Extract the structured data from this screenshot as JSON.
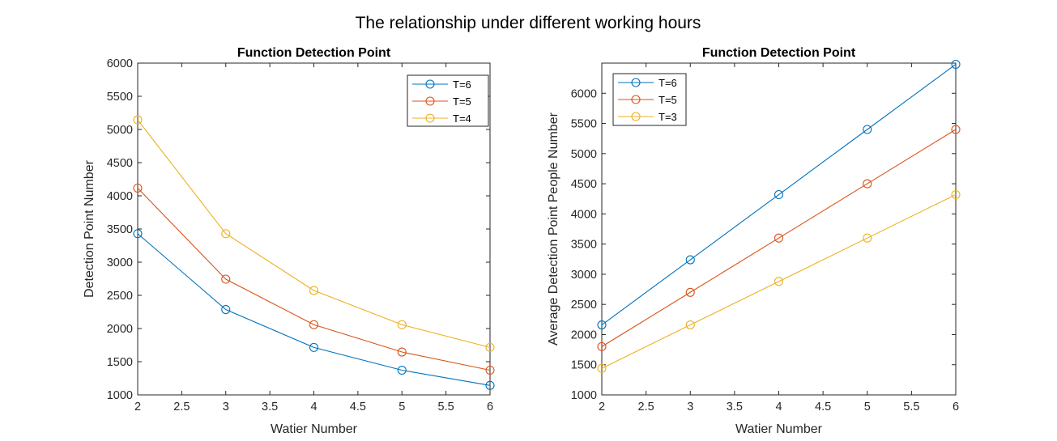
{
  "figure": {
    "suptitle": "The relationship under different working hours"
  },
  "chart_data": [
    {
      "type": "line",
      "title": "Function Detection Point",
      "xlabel": "Watier Number",
      "ylabel": "Detection Point Number",
      "x": [
        2,
        3,
        4,
        5,
        6
      ],
      "xlim": [
        2,
        6
      ],
      "ylim": [
        1000,
        6000
      ],
      "xticks": [
        2,
        2.5,
        3,
        3.5,
        4,
        4.5,
        5,
        5.5,
        6
      ],
      "yticks": [
        1000,
        1500,
        2000,
        2500,
        3000,
        3500,
        4000,
        4500,
        5000,
        5500,
        6000
      ],
      "xtick_labels": [
        "2",
        "2.5",
        "3",
        "3.5",
        "4",
        "4.5",
        "5",
        "5.5",
        "6"
      ],
      "ytick_labels": [
        "1000",
        "1500",
        "2000",
        "2500",
        "3000",
        "3500",
        "4000",
        "4500",
        "5000",
        "5500",
        "6000"
      ],
      "marker": "circle",
      "legend_position": "top-right",
      "grid": false,
      "series": [
        {
          "name": "T=6",
          "color": "#0072BD",
          "values": [
            3430,
            2286,
            1715,
            1372,
            1143
          ]
        },
        {
          "name": "T=5",
          "color": "#D95319",
          "values": [
            4116,
            2744,
            2058,
            1646,
            1372
          ]
        },
        {
          "name": "T=4",
          "color": "#EDB120",
          "values": [
            5145,
            3430,
            2573,
            2058,
            1715
          ]
        }
      ]
    },
    {
      "type": "line",
      "title": "Function Detection Point",
      "xlabel": "Watier Number",
      "ylabel": "Average Detection Point People Number",
      "x": [
        2,
        3,
        4,
        5,
        6
      ],
      "xlim": [
        2,
        6
      ],
      "ylim": [
        1000,
        6500
      ],
      "xticks": [
        2,
        2.5,
        3,
        3.5,
        4,
        4.5,
        5,
        5.5,
        6
      ],
      "yticks": [
        1000,
        1500,
        2000,
        2500,
        3000,
        3500,
        4000,
        4500,
        5000,
        5500,
        6000
      ],
      "xtick_labels": [
        "2",
        "2.5",
        "3",
        "3.5",
        "4",
        "4.5",
        "5",
        "5.5",
        "6"
      ],
      "ytick_labels": [
        "1000",
        "1500",
        "2000",
        "2500",
        "3000",
        "3500",
        "4000",
        "4500",
        "5000",
        "5500",
        "6000"
      ],
      "marker": "circle",
      "legend_position": "top-left",
      "grid": false,
      "series": [
        {
          "name": "T=6",
          "color": "#0072BD",
          "values": [
            2160,
            3240,
            4320,
            5400,
            6480
          ]
        },
        {
          "name": "T=5",
          "color": "#D95319",
          "values": [
            1800,
            2700,
            3600,
            4500,
            5400
          ]
        },
        {
          "name": "T=3",
          "color": "#EDB120",
          "values": [
            1440,
            2160,
            2880,
            3600,
            4320
          ]
        }
      ]
    }
  ]
}
